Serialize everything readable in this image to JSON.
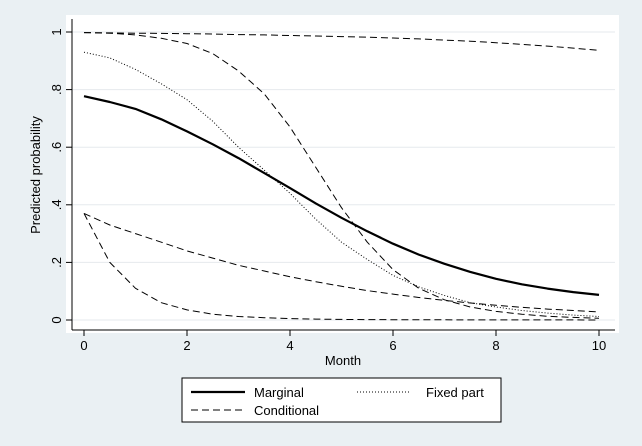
{
  "chart_data": {
    "type": "line",
    "title": "",
    "xlabel": "Month",
    "ylabel": "Predicted probability",
    "xlim": [
      0,
      10
    ],
    "ylim": [
      0,
      1
    ],
    "x_ticks": [
      0,
      2,
      4,
      6,
      8,
      10
    ],
    "x_tick_labels": [
      "0",
      "2",
      "4",
      "6",
      "8",
      "10"
    ],
    "y_ticks": [
      0,
      0.2,
      0.4,
      0.6,
      0.8,
      1
    ],
    "y_tick_labels": [
      "0",
      ".2",
      ".4",
      ".6",
      ".8",
      "1"
    ],
    "grid": "horizontal",
    "legend": {
      "placement": "bottom",
      "entries": [
        {
          "label": "Marginal",
          "style": "solid"
        },
        {
          "label": "Fixed part",
          "style": "dotted"
        },
        {
          "label": "Conditional",
          "style": "dashed"
        }
      ]
    },
    "series": [
      {
        "name": "Marginal",
        "style": "solid",
        "x": [
          0,
          0.5,
          1,
          1.5,
          2,
          2.5,
          3,
          3.5,
          4,
          4.5,
          5,
          5.5,
          6,
          6.5,
          7,
          7.5,
          8,
          8.5,
          9,
          9.5,
          10
        ],
        "y": [
          0.777,
          0.757,
          0.733,
          0.697,
          0.655,
          0.61,
          0.562,
          0.51,
          0.458,
          0.405,
          0.355,
          0.308,
          0.265,
          0.227,
          0.195,
          0.167,
          0.143,
          0.124,
          0.109,
          0.097,
          0.087
        ]
      },
      {
        "name": "Fixed part",
        "style": "dotted",
        "x": [
          0,
          0.5,
          1,
          1.5,
          2,
          2.5,
          3,
          3.5,
          4,
          4.5,
          5,
          5.5,
          6,
          6.5,
          7,
          7.5,
          8,
          8.5,
          9,
          9.5,
          10
        ],
        "y": [
          0.93,
          0.91,
          0.87,
          0.82,
          0.765,
          0.69,
          0.6,
          0.52,
          0.44,
          0.35,
          0.27,
          0.21,
          0.155,
          0.115,
          0.085,
          0.06,
          0.045,
          0.033,
          0.024,
          0.017,
          0.012
        ]
      },
      {
        "name": "Conditional",
        "style": "dashed",
        "x": [
          0,
          0.5,
          1,
          1.5,
          2,
          2.5,
          3,
          3.5,
          4,
          4.5,
          5,
          5.5,
          6,
          6.5,
          7,
          7.5,
          8,
          8.5,
          9,
          9.5,
          10
        ],
        "y": [
          0.998,
          0.997,
          0.996,
          0.995,
          0.994,
          0.993,
          0.991,
          0.99,
          0.988,
          0.986,
          0.984,
          0.982,
          0.979,
          0.976,
          0.972,
          0.968,
          0.963,
          0.957,
          0.951,
          0.944,
          0.936
        ]
      },
      {
        "name": "Conditional",
        "style": "dashed",
        "x": [
          0,
          0.5,
          1,
          1.5,
          2,
          2.5,
          3,
          3.5,
          4,
          4.5,
          5,
          5.5,
          6,
          6.5,
          7,
          7.5,
          8,
          8.5,
          9,
          9.5,
          10
        ],
        "y": [
          0.998,
          0.996,
          0.99,
          0.978,
          0.96,
          0.925,
          0.865,
          0.785,
          0.67,
          0.53,
          0.39,
          0.27,
          0.175,
          0.11,
          0.07,
          0.045,
          0.03,
          0.02,
          0.013,
          0.009,
          0.006
        ]
      },
      {
        "name": "Conditional",
        "style": "dashed",
        "x": [
          0,
          0.5,
          1,
          1.5,
          2,
          2.5,
          3,
          3.5,
          4,
          4.5,
          5,
          5.5,
          6,
          6.5,
          7,
          7.5,
          8,
          8.5,
          9,
          9.5,
          10
        ],
        "y": [
          0.37,
          0.33,
          0.3,
          0.27,
          0.24,
          0.215,
          0.19,
          0.17,
          0.15,
          0.133,
          0.117,
          0.102,
          0.09,
          0.078,
          0.068,
          0.059,
          0.051,
          0.044,
          0.038,
          0.033,
          0.028
        ]
      },
      {
        "name": "Conditional",
        "style": "dashed",
        "x": [
          0,
          0.5,
          1,
          1.5,
          2,
          2.5,
          3,
          3.5,
          4,
          4.5,
          5,
          5.5,
          6,
          6.5,
          7,
          7.5,
          8,
          8.5,
          9,
          9.5,
          10
        ],
        "y": [
          0.37,
          0.2,
          0.11,
          0.06,
          0.035,
          0.02,
          0.012,
          0.008,
          0.005,
          0.003,
          0.002,
          0.0015,
          0.001,
          0.0008,
          0.0006,
          0.0005,
          0.0004,
          0.0003,
          0.0002,
          0.0002,
          0.0001
        ]
      }
    ]
  }
}
